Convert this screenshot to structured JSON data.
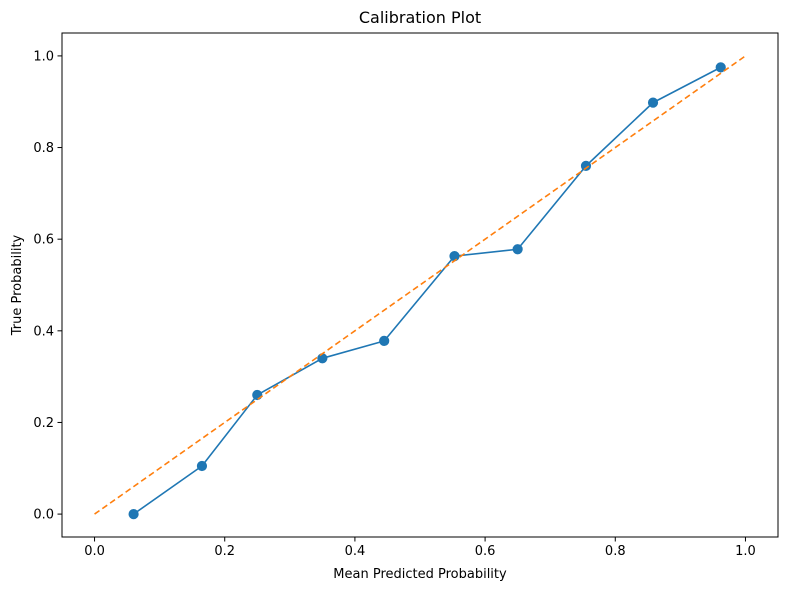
{
  "chart_data": {
    "type": "line",
    "title": "Calibration Plot",
    "xlabel": "Mean Predicted Probability",
    "ylabel": "True Probability",
    "xlim": [
      -0.05,
      1.05
    ],
    "ylim": [
      -0.05,
      1.05
    ],
    "xticks": [
      0.0,
      0.2,
      0.4,
      0.6,
      0.8,
      1.0
    ],
    "yticks": [
      0.0,
      0.2,
      0.4,
      0.6,
      0.8,
      1.0
    ],
    "xtick_labels": [
      "0.0",
      "0.2",
      "0.4",
      "0.6",
      "0.8",
      "1.0"
    ],
    "ytick_labels": [
      "0.0",
      "0.2",
      "0.4",
      "0.6",
      "0.8",
      "1.0"
    ],
    "grid": false,
    "legend": null,
    "series": [
      {
        "style": "solid line with circle markers",
        "color": "#1f77b4",
        "x": [
          0.06,
          0.165,
          0.25,
          0.35,
          0.445,
          0.553,
          0.65,
          0.755,
          0.858,
          0.962
        ],
        "y": [
          0.0,
          0.105,
          0.26,
          0.34,
          0.378,
          0.563,
          0.578,
          0.76,
          0.898,
          0.975
        ]
      },
      {
        "style": "dashed line",
        "color": "#ff7f0e",
        "x": [
          0.0,
          1.0
        ],
        "y": [
          0.0,
          1.0
        ]
      }
    ]
  }
}
